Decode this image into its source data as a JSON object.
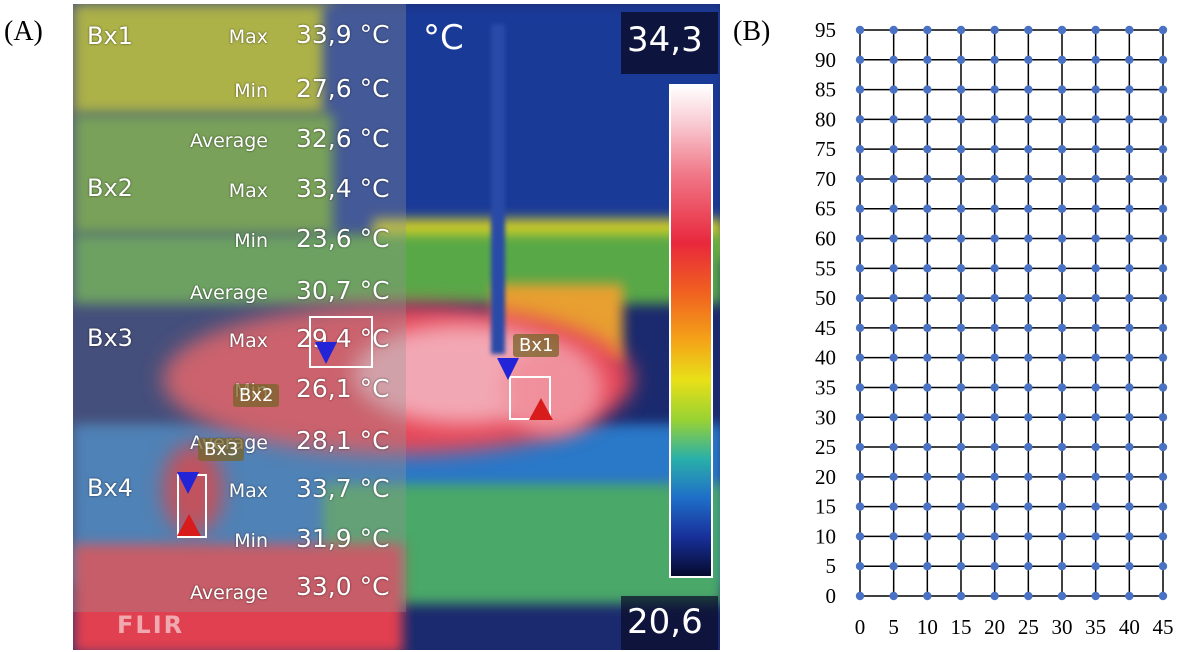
{
  "panels": {
    "a_label": "(A)",
    "b_label": "(B)"
  },
  "thermal_image": {
    "unit": "°C",
    "scale_max": "34,3",
    "scale_min": "20,6",
    "watermark": "FLIR",
    "measurements": [
      {
        "name": "Bx1",
        "max": "33,9 °C",
        "min": "27,6 °C",
        "average": "32,6 °C"
      },
      {
        "name": "Bx2",
        "max": "33,4 °C",
        "min": "23,6 °C",
        "average": "30,7 °C"
      },
      {
        "name": "Bx3",
        "max": "29,4 °C",
        "min": "26,1 °C",
        "average": "28,1 °C"
      },
      {
        "name": "Bx4",
        "max": "33,7 °C",
        "min": "31,9 °C",
        "average": "33,0 °C"
      }
    ],
    "keys": {
      "max": "Max",
      "min": "Min",
      "average": "Average"
    },
    "box_tags": [
      "Bx1",
      "Bx2",
      "Bx3"
    ],
    "colors": {
      "hot": "#e8283c",
      "warm": "#f4a418",
      "mid": "#e8e018",
      "cool": "#1f6fc8",
      "cold": "#060a2e",
      "marker_min": "#2323d8",
      "marker_max": "#d81c1c"
    }
  },
  "chart_data": {
    "type": "scatter",
    "title": "",
    "xlabel": "",
    "ylabel": "",
    "x_ticks": [
      "0",
      "5",
      "10",
      "15",
      "20",
      "25",
      "30",
      "35",
      "40",
      "45"
    ],
    "y_ticks": [
      "0",
      "5",
      "10",
      "15",
      "20",
      "25",
      "30",
      "35",
      "40",
      "45",
      "50",
      "55",
      "60",
      "65",
      "70",
      "75",
      "80",
      "85",
      "90",
      "95"
    ],
    "xlim": [
      0,
      45
    ],
    "ylim": [
      0,
      95
    ],
    "grid": true,
    "point_color": "#4a72c4",
    "series": [
      {
        "description": "regular grid of points at every x in 0..45 step 5 and y in 0..95 step 5",
        "x_step": 5,
        "y_step": 5
      }
    ]
  }
}
